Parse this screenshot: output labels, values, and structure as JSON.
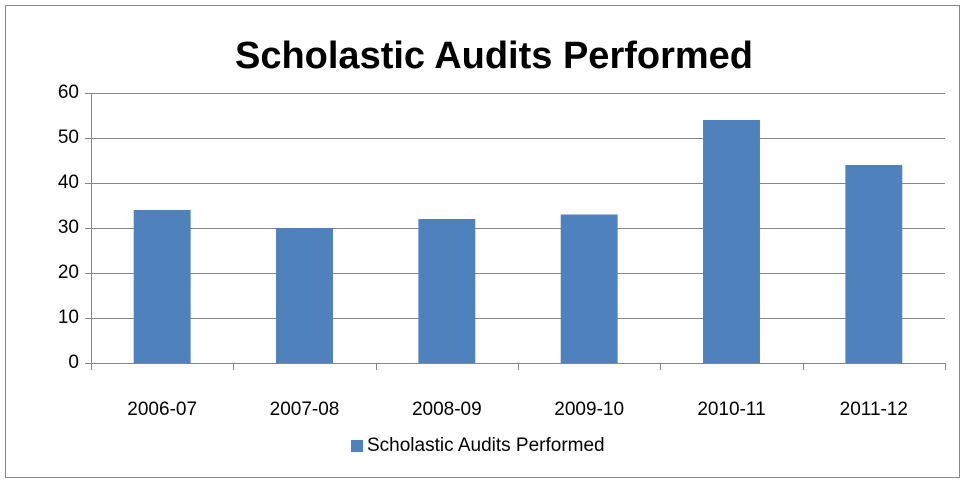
{
  "chart_data": {
    "type": "bar",
    "title": "Scholastic Audits Performed",
    "categories": [
      "2006-07",
      "2007-08",
      "2008-09",
      "2009-10",
      "2010-11",
      "2011-12"
    ],
    "series": [
      {
        "name": "Scholastic Audits Performed",
        "color": "#4f81bd",
        "values": [
          34,
          30,
          32,
          33,
          54,
          44
        ]
      }
    ],
    "ylim": [
      0,
      60
    ],
    "yticks": [
      0,
      10,
      20,
      30,
      40,
      50,
      60
    ],
    "grid": true,
    "legend": "bottom"
  }
}
